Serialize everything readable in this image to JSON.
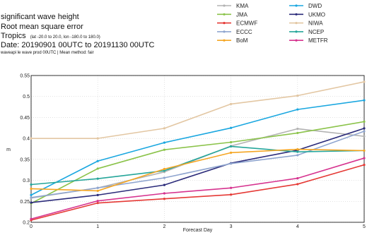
{
  "header": {
    "line1": "significant wave height",
    "line2": "Root mean square error",
    "line3_main": "Tropics",
    "line3_sub": "(lat -20.0 to 20.0, lon -180.0 to 180.0)",
    "line4": "Date: 20190901 00UTC to 20191130 00UTC",
    "line5": "waveapi le wave prod 00UTC | Mean method: fair"
  },
  "chart_data": {
    "type": "line",
    "xlabel": "Forecast Day",
    "ylabel": "m",
    "xlim": [
      0,
      5
    ],
    "ylim": [
      0.2,
      0.55
    ],
    "x": [
      0,
      1,
      2,
      3,
      4,
      5
    ],
    "xticks": [
      0,
      1,
      2,
      3,
      4,
      5
    ],
    "yticks": [
      0.2,
      0.25,
      0.3,
      0.35,
      0.4,
      0.45,
      0.5,
      0.55
    ],
    "grid": true,
    "legend_position": "top-right",
    "series": [
      {
        "name": "KMA",
        "color": "#b3b3b3",
        "values": [
          0.258,
          0.282,
          0.32,
          0.382,
          0.423,
          0.405
        ]
      },
      {
        "name": "DWD",
        "color": "#1aa7e0",
        "values": [
          0.265,
          0.346,
          0.39,
          0.425,
          0.469,
          0.491
        ]
      },
      {
        "name": "JMA",
        "color": "#8bc34a",
        "values": [
          0.245,
          0.328,
          0.373,
          0.391,
          0.413,
          0.44
        ]
      },
      {
        "name": "UKMO",
        "color": "#2b2b7a",
        "values": [
          0.247,
          0.265,
          0.289,
          0.341,
          0.372,
          0.424
        ]
      },
      {
        "name": "ECMWF",
        "color": "#e53935",
        "values": [
          0.205,
          0.246,
          0.256,
          0.266,
          0.291,
          0.337
        ]
      },
      {
        "name": "NIWA",
        "color": "#e3c7a3",
        "values": [
          0.4,
          0.4,
          0.424,
          0.482,
          0.502,
          0.535
        ]
      },
      {
        "name": "ECCC",
        "color": "#8fa5cf",
        "values": [
          0.259,
          0.282,
          0.306,
          0.34,
          0.36,
          0.417
        ]
      },
      {
        "name": "NCEP",
        "color": "#26a69a",
        "values": [
          0.29,
          0.304,
          0.323,
          0.381,
          0.368,
          0.371
        ]
      },
      {
        "name": "BoM",
        "color": "#f5a623",
        "values": [
          0.28,
          0.275,
          0.327,
          0.366,
          0.374,
          0.371
        ]
      },
      {
        "name": "METFR",
        "color": "#d6338f",
        "values": [
          0.208,
          0.251,
          0.269,
          0.282,
          0.305,
          0.353
        ]
      }
    ]
  }
}
